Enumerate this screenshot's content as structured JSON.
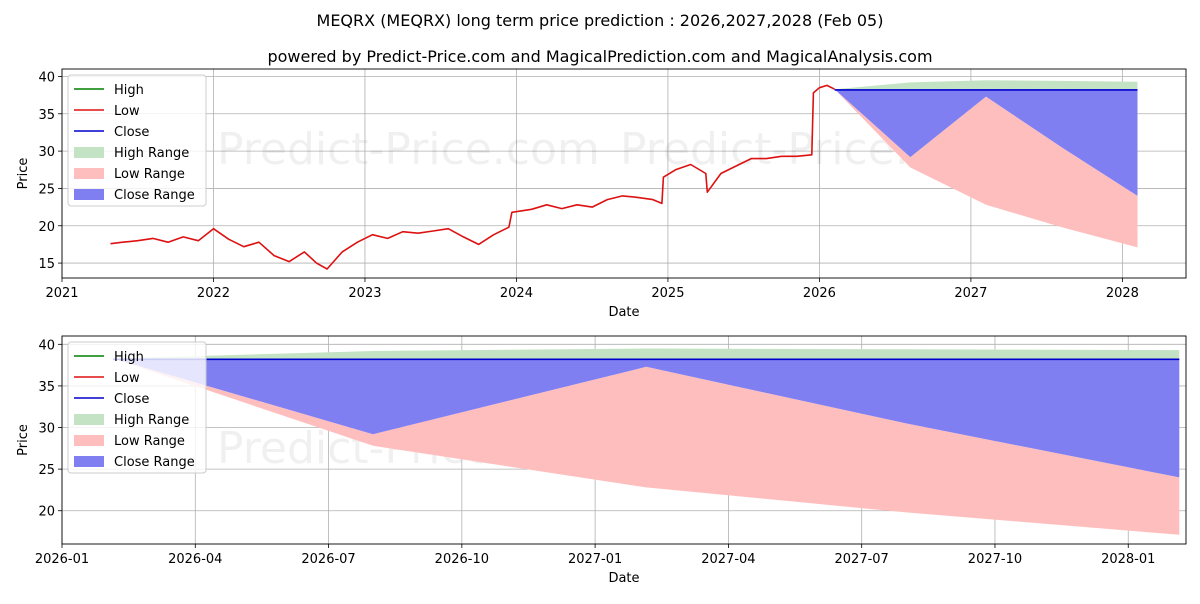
{
  "title_line1": "MEQRX (MEQRX) long term price prediction : 2026,2027,2028 (Feb 05)",
  "title_line2": "powered by Predict-Price.com and MagicalPrediction.com and MagicalAnalysis.com",
  "watermark": "Predict-Price.com",
  "legend": [
    {
      "label": "High",
      "kind": "line",
      "color": "#008000"
    },
    {
      "label": "Low",
      "kind": "line",
      "color": "#dd1111"
    },
    {
      "label": "Close",
      "kind": "line",
      "color": "#0000cc"
    },
    {
      "label": "High Range",
      "kind": "patch",
      "color": "#c4e3c4"
    },
    {
      "label": "Low Range",
      "kind": "patch",
      "color": "#ffbebe"
    },
    {
      "label": "Close Range",
      "kind": "patch",
      "color": "#7f7ff2"
    }
  ],
  "chart_data": [
    {
      "id": "top",
      "type": "line",
      "xlabel": "Date",
      "ylabel": "Price",
      "xlim": [
        2021.0,
        2028.42
      ],
      "ylim": [
        13.0,
        41.0
      ],
      "grid": true,
      "legend_position": "upper-left",
      "x_ticks": [
        {
          "value": 2021,
          "label": "2021"
        },
        {
          "value": 2022,
          "label": "2022"
        },
        {
          "value": 2023,
          "label": "2023"
        },
        {
          "value": 2024,
          "label": "2024"
        },
        {
          "value": 2025,
          "label": "2025"
        },
        {
          "value": 2026,
          "label": "2026"
        },
        {
          "value": 2027,
          "label": "2027"
        },
        {
          "value": 2028,
          "label": "2028"
        }
      ],
      "y_ticks": [
        {
          "value": 15,
          "label": "15"
        },
        {
          "value": 20,
          "label": "20"
        },
        {
          "value": 25,
          "label": "25"
        },
        {
          "value": 30,
          "label": "30"
        },
        {
          "value": 35,
          "label": "35"
        },
        {
          "value": 40,
          "label": "40"
        }
      ],
      "history": {
        "x": [
          2021.32,
          2021.4,
          2021.5,
          2021.6,
          2021.7,
          2021.8,
          2021.9,
          2022.0,
          2022.1,
          2022.2,
          2022.3,
          2022.4,
          2022.5,
          2022.6,
          2022.68,
          2022.75,
          2022.85,
          2022.95,
          2023.05,
          2023.15,
          2023.25,
          2023.35,
          2023.45,
          2023.55,
          2023.65,
          2023.75,
          2023.85,
          2023.95,
          2023.97,
          2024.1,
          2024.2,
          2024.3,
          2024.4,
          2024.5,
          2024.6,
          2024.7,
          2024.8,
          2024.9,
          2024.96,
          2024.97,
          2025.05,
          2025.15,
          2025.25,
          2025.26,
          2025.35,
          2025.45,
          2025.55,
          2025.65,
          2025.75,
          2025.85,
          2025.95,
          2025.96,
          2026.0,
          2026.05,
          2026.1
        ],
        "low": [
          17.6,
          17.8,
          18.0,
          18.3,
          17.8,
          18.5,
          18.0,
          19.6,
          18.2,
          17.2,
          17.8,
          16.0,
          15.2,
          16.5,
          15.0,
          14.2,
          16.5,
          17.8,
          18.8,
          18.3,
          19.2,
          19.0,
          19.3,
          19.6,
          18.5,
          17.5,
          18.8,
          19.8,
          21.8,
          22.2,
          22.8,
          22.3,
          22.8,
          22.5,
          23.5,
          24.0,
          23.8,
          23.5,
          23.0,
          26.5,
          27.5,
          28.2,
          27.0,
          24.5,
          27.0,
          28.0,
          29.0,
          29.0,
          29.3,
          29.3,
          29.5,
          37.8,
          38.5,
          38.8,
          38.3
        ],
        "close": [
          17.7,
          17.9,
          18.1,
          18.4,
          17.9,
          18.6,
          18.1,
          19.7,
          18.3,
          17.3,
          17.9,
          16.1,
          15.3,
          16.6,
          15.1,
          14.3,
          16.6,
          17.9,
          18.9,
          18.4,
          19.3,
          19.1,
          19.4,
          19.7,
          18.6,
          17.6,
          18.9,
          19.9,
          21.9,
          22.3,
          22.9,
          22.4,
          22.9,
          22.6,
          23.6,
          24.1,
          23.9,
          23.6,
          23.1,
          26.6,
          27.6,
          28.3,
          27.1,
          24.6,
          27.1,
          28.1,
          29.1,
          29.1,
          29.4,
          29.4,
          29.6,
          37.9,
          38.6,
          38.9,
          38.3
        ]
      },
      "forecast": {
        "x": [
          2026.1,
          2026.6,
          2027.1,
          2027.6,
          2028.1
        ],
        "high_range": {
          "lower": [
            38.3,
            38.3,
            38.3,
            38.3,
            38.3
          ],
          "upper": [
            38.3,
            39.2,
            39.5,
            39.4,
            39.3
          ]
        },
        "low_range": {
          "lower": [
            38.3,
            27.8,
            22.8,
            19.8,
            17.1
          ],
          "upper": [
            38.3,
            29.2,
            37.3,
            30.5,
            24.0
          ]
        },
        "close_range": {
          "lower": [
            38.3,
            29.2,
            37.3,
            30.5,
            24.0
          ],
          "upper": [
            38.3,
            38.3,
            38.3,
            38.3,
            38.3
          ]
        },
        "close_line": [
          38.2,
          38.2,
          38.2,
          38.2,
          38.2
        ]
      }
    },
    {
      "id": "bottom",
      "type": "area",
      "xlabel": "Date",
      "ylabel": "Price",
      "xlim": [
        0.0,
        25.3
      ],
      "ylim": [
        16.0,
        41.0
      ],
      "grid": true,
      "legend_position": "upper-left",
      "x_axis_unit": "months since 2026-01",
      "x_ticks": [
        {
          "value": 0,
          "label": "2026-01"
        },
        {
          "value": 3,
          "label": "2026-04"
        },
        {
          "value": 6,
          "label": "2026-07"
        },
        {
          "value": 9,
          "label": "2026-10"
        },
        {
          "value": 12,
          "label": "2027-01"
        },
        {
          "value": 15,
          "label": "2027-04"
        },
        {
          "value": 18,
          "label": "2027-07"
        },
        {
          "value": 21,
          "label": "2027-10"
        },
        {
          "value": 24,
          "label": "2028-01"
        }
      ],
      "y_ticks": [
        {
          "value": 20,
          "label": "20"
        },
        {
          "value": 25,
          "label": "25"
        },
        {
          "value": 30,
          "label": "30"
        },
        {
          "value": 35,
          "label": "35"
        },
        {
          "value": 40,
          "label": "40"
        }
      ],
      "forecast": {
        "x": [
          1.15,
          7.0,
          13.15,
          19.0,
          25.15
        ],
        "high_range": {
          "lower": [
            38.3,
            38.3,
            38.3,
            38.3,
            38.3
          ],
          "upper": [
            38.3,
            39.2,
            39.5,
            39.4,
            39.3
          ]
        },
        "low_range": {
          "lower": [
            38.3,
            27.8,
            22.8,
            19.8,
            17.1
          ],
          "upper": [
            38.3,
            29.2,
            37.3,
            30.5,
            24.0
          ]
        },
        "close_range": {
          "lower": [
            38.3,
            29.2,
            37.3,
            30.5,
            24.0
          ],
          "upper": [
            38.3,
            38.3,
            38.3,
            38.3,
            38.3
          ]
        },
        "close_line": [
          38.2,
          38.2,
          38.2,
          38.2,
          38.2
        ]
      }
    }
  ]
}
